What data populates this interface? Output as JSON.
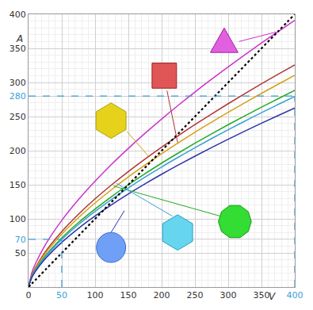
{
  "chart_data": {
    "type": "line",
    "x_label": "V",
    "y_label": "A",
    "x": [
      0,
      5,
      10,
      25,
      50,
      75,
      100,
      125,
      150,
      175,
      200,
      225,
      250,
      275,
      300,
      325,
      350,
      375,
      400
    ],
    "series": [
      {
        "color": "#cc33cc",
        "values": [
          0,
          21.1,
          33.4,
          61.6,
          97.8,
          128.2,
          155.2,
          180.2,
          203.4,
          225.4,
          246.4,
          266.6,
          286.0,
          304.7,
          322.9,
          340.6,
          357.9,
          374.7,
          391.2
        ]
      },
      {
        "color": "#b03535",
        "values": [
          0,
          17.5,
          27.9,
          51.3,
          81.4,
          106.7,
          129.3,
          150.0,
          169.4,
          187.7,
          205.2,
          222.0,
          238.1,
          253.7,
          268.9,
          283.6,
          298.0,
          312.0,
          325.7
        ]
      },
      {
        "color": "#d4a017",
        "values": [
          0,
          16.7,
          26.5,
          48.9,
          77.6,
          101.7,
          123.2,
          143.0,
          161.5,
          178.9,
          195.6,
          211.6,
          227.0,
          241.8,
          256.3,
          270.3,
          284.0,
          297.4,
          310.5
        ]
      },
      {
        "color": "#22aa22",
        "values": [
          0,
          15.5,
          24.7,
          45.4,
          72.1,
          94.5,
          114.4,
          132.8,
          150.0,
          166.2,
          181.7,
          196.5,
          210.8,
          224.6,
          238.1,
          251.1,
          263.8,
          276.2,
          288.4
        ]
      },
      {
        "color": "#3aa0d8",
        "values": [
          0,
          15.1,
          23.9,
          44.0,
          69.9,
          91.6,
          110.9,
          128.7,
          145.3,
          161.1,
          176.1,
          190.4,
          204.3,
          217.7,
          230.7,
          243.3,
          255.7,
          267.7,
          279.5
        ]
      },
      {
        "color": "#2a35a8",
        "values": [
          0,
          14.1,
          22.4,
          41.3,
          65.6,
          86.0,
          104.2,
          120.9,
          136.5,
          151.3,
          165.4,
          178.9,
          191.9,
          204.5,
          216.7,
          228.6,
          240.2,
          251.5,
          262.5
        ]
      },
      {
        "color": "#000000",
        "line_style": "dotted",
        "values": [
          0,
          5,
          10,
          25,
          50,
          75,
          100,
          125,
          150,
          175,
          200,
          225,
          250,
          275,
          300,
          325,
          350,
          375,
          400
        ]
      }
    ],
    "xlim": [
      0,
      400
    ],
    "ylim": [
      0,
      400
    ],
    "xticks": [
      0,
      50,
      100,
      150,
      200,
      250,
      300,
      350,
      400
    ],
    "yticks": [
      50,
      70,
      100,
      150,
      200,
      250,
      280,
      300,
      350,
      400
    ],
    "grid": true,
    "reference_points": [
      {
        "x": 50,
        "y": 70,
        "color": "#3aa0d8"
      },
      {
        "x": 400,
        "y": 280,
        "color": "#3aa0d8"
      }
    ]
  }
}
